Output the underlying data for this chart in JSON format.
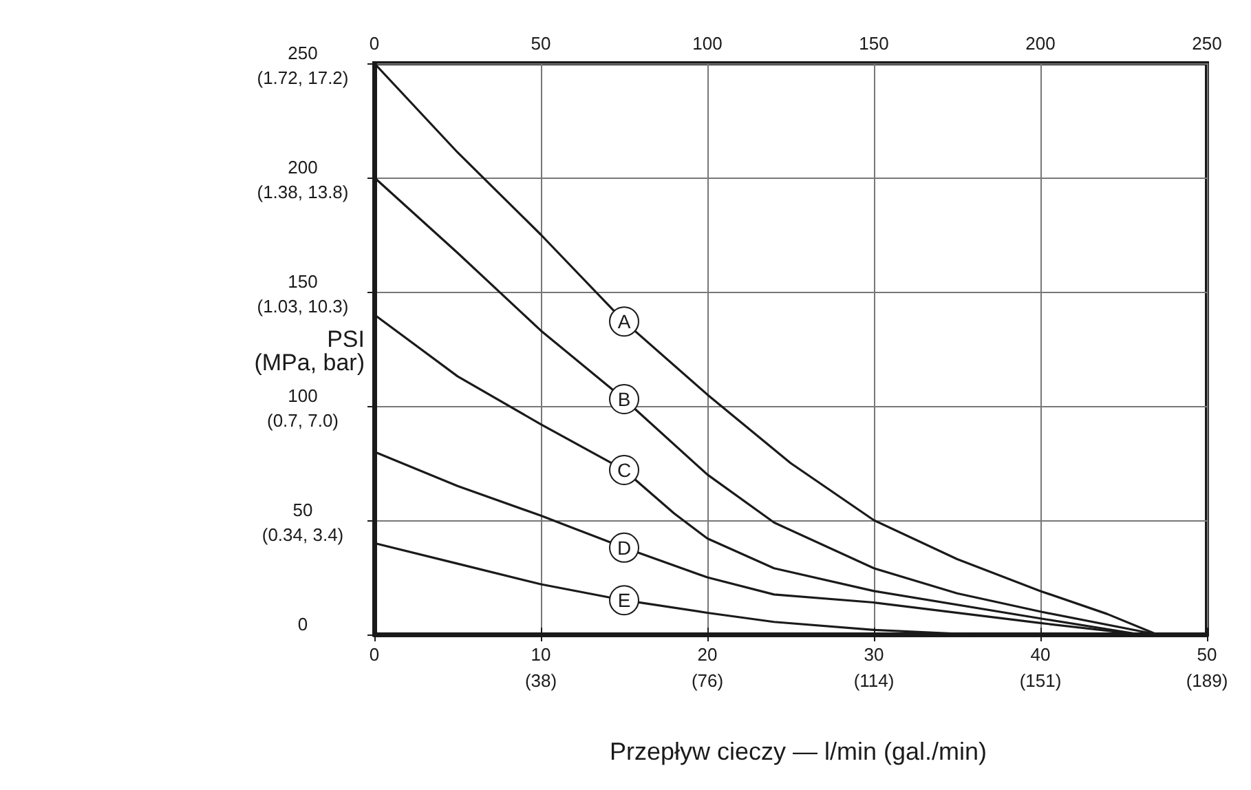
{
  "chart_data": {
    "type": "line",
    "xlabel": "Przepływ cieczy — l/min (gal./min)",
    "ylabel": "PSI\n(MPa, bar)",
    "series": [
      {
        "name": "A",
        "color": "#1a1a1a",
        "x": [
          0,
          5,
          10,
          15,
          20,
          25,
          30,
          35,
          40,
          44,
          47
        ],
        "values": [
          250,
          211,
          175,
          137,
          105,
          75,
          50,
          33,
          19,
          9,
          0
        ]
      },
      {
        "name": "B",
        "color": "#1a1a1a",
        "x": [
          0,
          5,
          10,
          15,
          20,
          24,
          30,
          35,
          40,
          47
        ],
        "values": [
          200,
          167,
          133,
          103,
          70,
          49,
          29,
          18,
          10,
          0
        ]
      },
      {
        "name": "C",
        "color": "#1a1a1a",
        "x": [
          0,
          5,
          10,
          15,
          18,
          20,
          24,
          30,
          40,
          46
        ],
        "values": [
          140,
          113,
          92,
          72,
          53,
          42,
          29,
          19,
          7,
          0
        ]
      },
      {
        "name": "D",
        "color": "#1a1a1a",
        "x": [
          0,
          5,
          10,
          15,
          20,
          24,
          30,
          40,
          46
        ],
        "values": [
          80,
          65,
          52,
          38,
          25,
          17.5,
          14,
          5,
          0
        ]
      },
      {
        "name": "E",
        "color": "#1a1a1a",
        "x": [
          0,
          5,
          10,
          15,
          20,
          24,
          30,
          36
        ],
        "values": [
          40,
          31,
          22,
          15,
          9.5,
          5.5,
          2,
          0
        ]
      }
    ],
    "xlim": [
      0,
      50
    ],
    "xticks": [
      0,
      10,
      20,
      30,
      40,
      50
    ],
    "annotations": [
      "(0.34, 3.4)",
      "(0.7, 7.0)",
      "(1.03, 10.3)",
      "(1.38, 13.8)",
      "(1.72, 17.2)",
      "(38)",
      "(76)",
      "(114)",
      "(151)",
      "(189)"
    ],
    "x2lim": [
      0,
      250
    ],
    "x2ticks": [
      0,
      50,
      100,
      150,
      200,
      250
    ],
    "ylim": [
      0,
      250
    ],
    "yticks": [
      0,
      50,
      100,
      150,
      200,
      250
    ],
    "grid": true,
    "legend": false
  }
}
